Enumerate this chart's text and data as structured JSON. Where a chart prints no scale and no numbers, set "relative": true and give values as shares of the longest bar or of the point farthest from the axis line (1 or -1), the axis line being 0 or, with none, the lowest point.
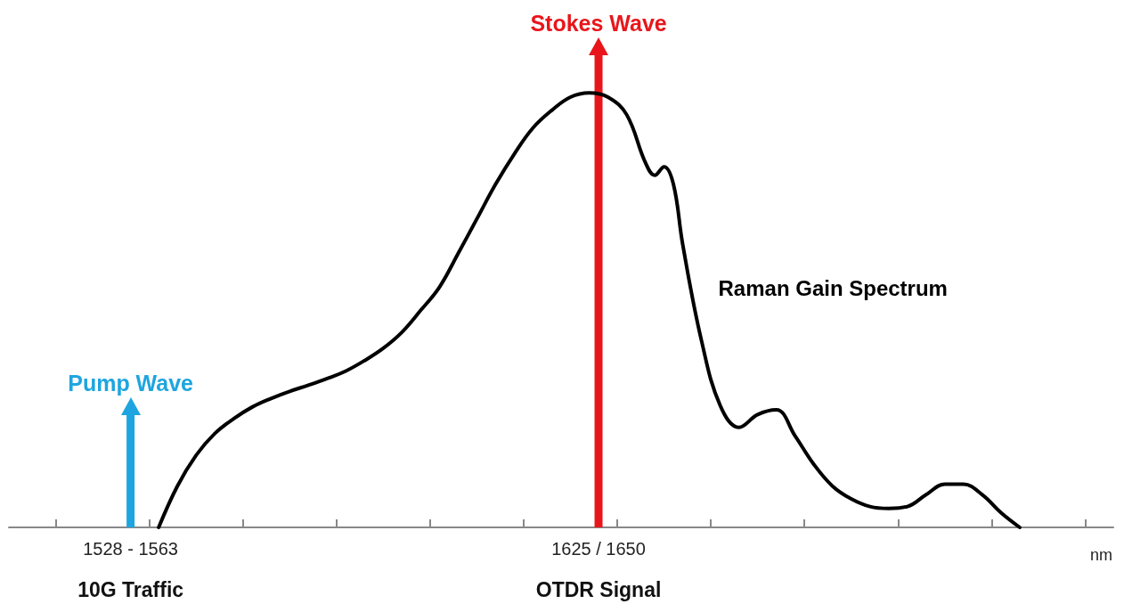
{
  "chart_data": {
    "type": "line",
    "relative": true,
    "xlabel": "nm",
    "categories": [
      null,
      null,
      null,
      null,
      null,
      null,
      null,
      null,
      null,
      null,
      null,
      null,
      null,
      "1528 - 1563",
      null,
      null,
      null,
      null,
      null,
      null,
      null,
      null,
      null,
      null,
      null,
      null,
      null,
      null,
      null,
      null,
      null,
      null,
      null,
      null,
      null,
      null,
      null,
      null,
      null,
      null,
      null,
      null,
      null,
      null,
      null,
      null,
      null,
      null,
      null,
      null,
      null,
      null,
      null,
      null,
      null,
      null,
      null,
      null,
      null,
      null,
      null,
      null,
      null,
      "1625 / 1650",
      null,
      null,
      null,
      null,
      null,
      null,
      null,
      null,
      null,
      null,
      null,
      null,
      null,
      null,
      null,
      null,
      null,
      null,
      null,
      null,
      null,
      null,
      null,
      null,
      null,
      null,
      null,
      null,
      null,
      null,
      null,
      null,
      null,
      null,
      null,
      null,
      null,
      null,
      null,
      null,
      null,
      null,
      null,
      null,
      null,
      null,
      null,
      null,
      null,
      null,
      null,
      null,
      null,
      null,
      null
    ],
    "series": [
      {
        "name": "Raman Gain Spectrum",
        "color": "#000000",
        "values": [
          null,
          null,
          null,
          null,
          null,
          null,
          null,
          null,
          null,
          null,
          null,
          null,
          null,
          null,
          null,
          null,
          0,
          null,
          0.087,
          null,
          0.152,
          null,
          0.198,
          null,
          0.229,
          null,
          0.254,
          null,
          0.272,
          null,
          0.287,
          null,
          0.3,
          null,
          0.314,
          null,
          0.33,
          null,
          0.352,
          null,
          0.378,
          null,
          0.412,
          null,
          0.458,
          null,
          0.507,
          null,
          0.578,
          null,
          0.651,
          null,
          0.724,
          null,
          0.788,
          null,
          0.843,
          null,
          0.88,
          null,
          0.908,
          null,
          0.917,
          null,
          0.908,
          null,
          0.871,
          null,
          0.77,
          0.743,
          0.761,
          0.724,
          0.596,
          null,
          0.394,
          null,
          0.257,
          null,
          0.211,
          null,
          0.238,
          null,
          0.248,
          null,
          0.193,
          null,
          0.133,
          null,
          0.087,
          null,
          0.06,
          null,
          0.044,
          null,
          0.04,
          null,
          0.044,
          null,
          0.069,
          null,
          0.091,
          null,
          0.091,
          null,
          0.069,
          null,
          0.031,
          null,
          0,
          null,
          null,
          null,
          null,
          null,
          null,
          null,
          null,
          null,
          null
        ]
      },
      {
        "name": "Pump Wave",
        "type": "bar",
        "color": "#1ea5e0",
        "values": [
          null,
          null,
          null,
          null,
          null,
          null,
          null,
          null,
          null,
          null,
          null,
          null,
          null,
          0.24,
          null,
          null,
          null,
          null,
          null,
          null,
          null,
          null,
          null,
          null,
          null,
          null,
          null,
          null,
          null,
          null,
          null,
          null,
          null,
          null,
          null,
          null,
          null,
          null,
          null,
          null,
          null,
          null,
          null,
          null,
          null,
          null,
          null,
          null,
          null,
          null,
          null,
          null,
          null,
          null,
          null,
          null,
          null,
          null,
          null,
          null,
          null,
          null,
          null,
          null,
          null,
          null,
          null,
          null,
          null,
          null,
          null,
          null,
          null,
          null,
          null,
          null,
          null,
          null,
          null,
          null,
          null,
          null,
          null,
          null,
          null,
          null,
          null,
          null,
          null,
          null,
          null,
          null,
          null,
          null,
          null,
          null,
          null,
          null,
          null,
          null,
          null,
          null,
          null,
          null,
          null,
          null,
          null,
          null,
          null,
          null,
          null,
          null,
          null,
          null,
          null,
          null,
          null,
          null,
          null
        ]
      },
      {
        "name": "Stokes Wave",
        "type": "bar",
        "color": "#e8161b",
        "values": [
          null,
          null,
          null,
          null,
          null,
          null,
          null,
          null,
          null,
          null,
          null,
          null,
          null,
          null,
          null,
          null,
          null,
          null,
          null,
          null,
          null,
          null,
          null,
          null,
          null,
          null,
          null,
          null,
          null,
          null,
          null,
          null,
          null,
          null,
          null,
          null,
          null,
          null,
          null,
          null,
          null,
          null,
          null,
          null,
          null,
          null,
          null,
          null,
          null,
          null,
          null,
          null,
          null,
          null,
          null,
          null,
          null,
          null,
          null,
          null,
          null,
          null,
          null,
          1,
          null,
          null,
          null,
          null,
          null,
          null,
          null,
          null,
          null,
          null,
          null,
          null,
          null,
          null,
          null,
          null,
          null,
          null,
          null,
          null,
          null,
          null,
          null,
          null,
          null,
          null,
          null,
          null,
          null,
          null,
          null,
          null,
          null,
          null,
          null,
          null,
          null,
          null,
          null,
          null,
          null,
          null,
          null,
          null,
          null,
          null,
          null,
          null,
          null,
          null,
          null,
          null,
          null,
          null,
          null
        ]
      }
    ],
    "annotations": [
      "10G Traffic",
      "OTDR Signal"
    ],
    "legend": false,
    "grid": false
  }
}
